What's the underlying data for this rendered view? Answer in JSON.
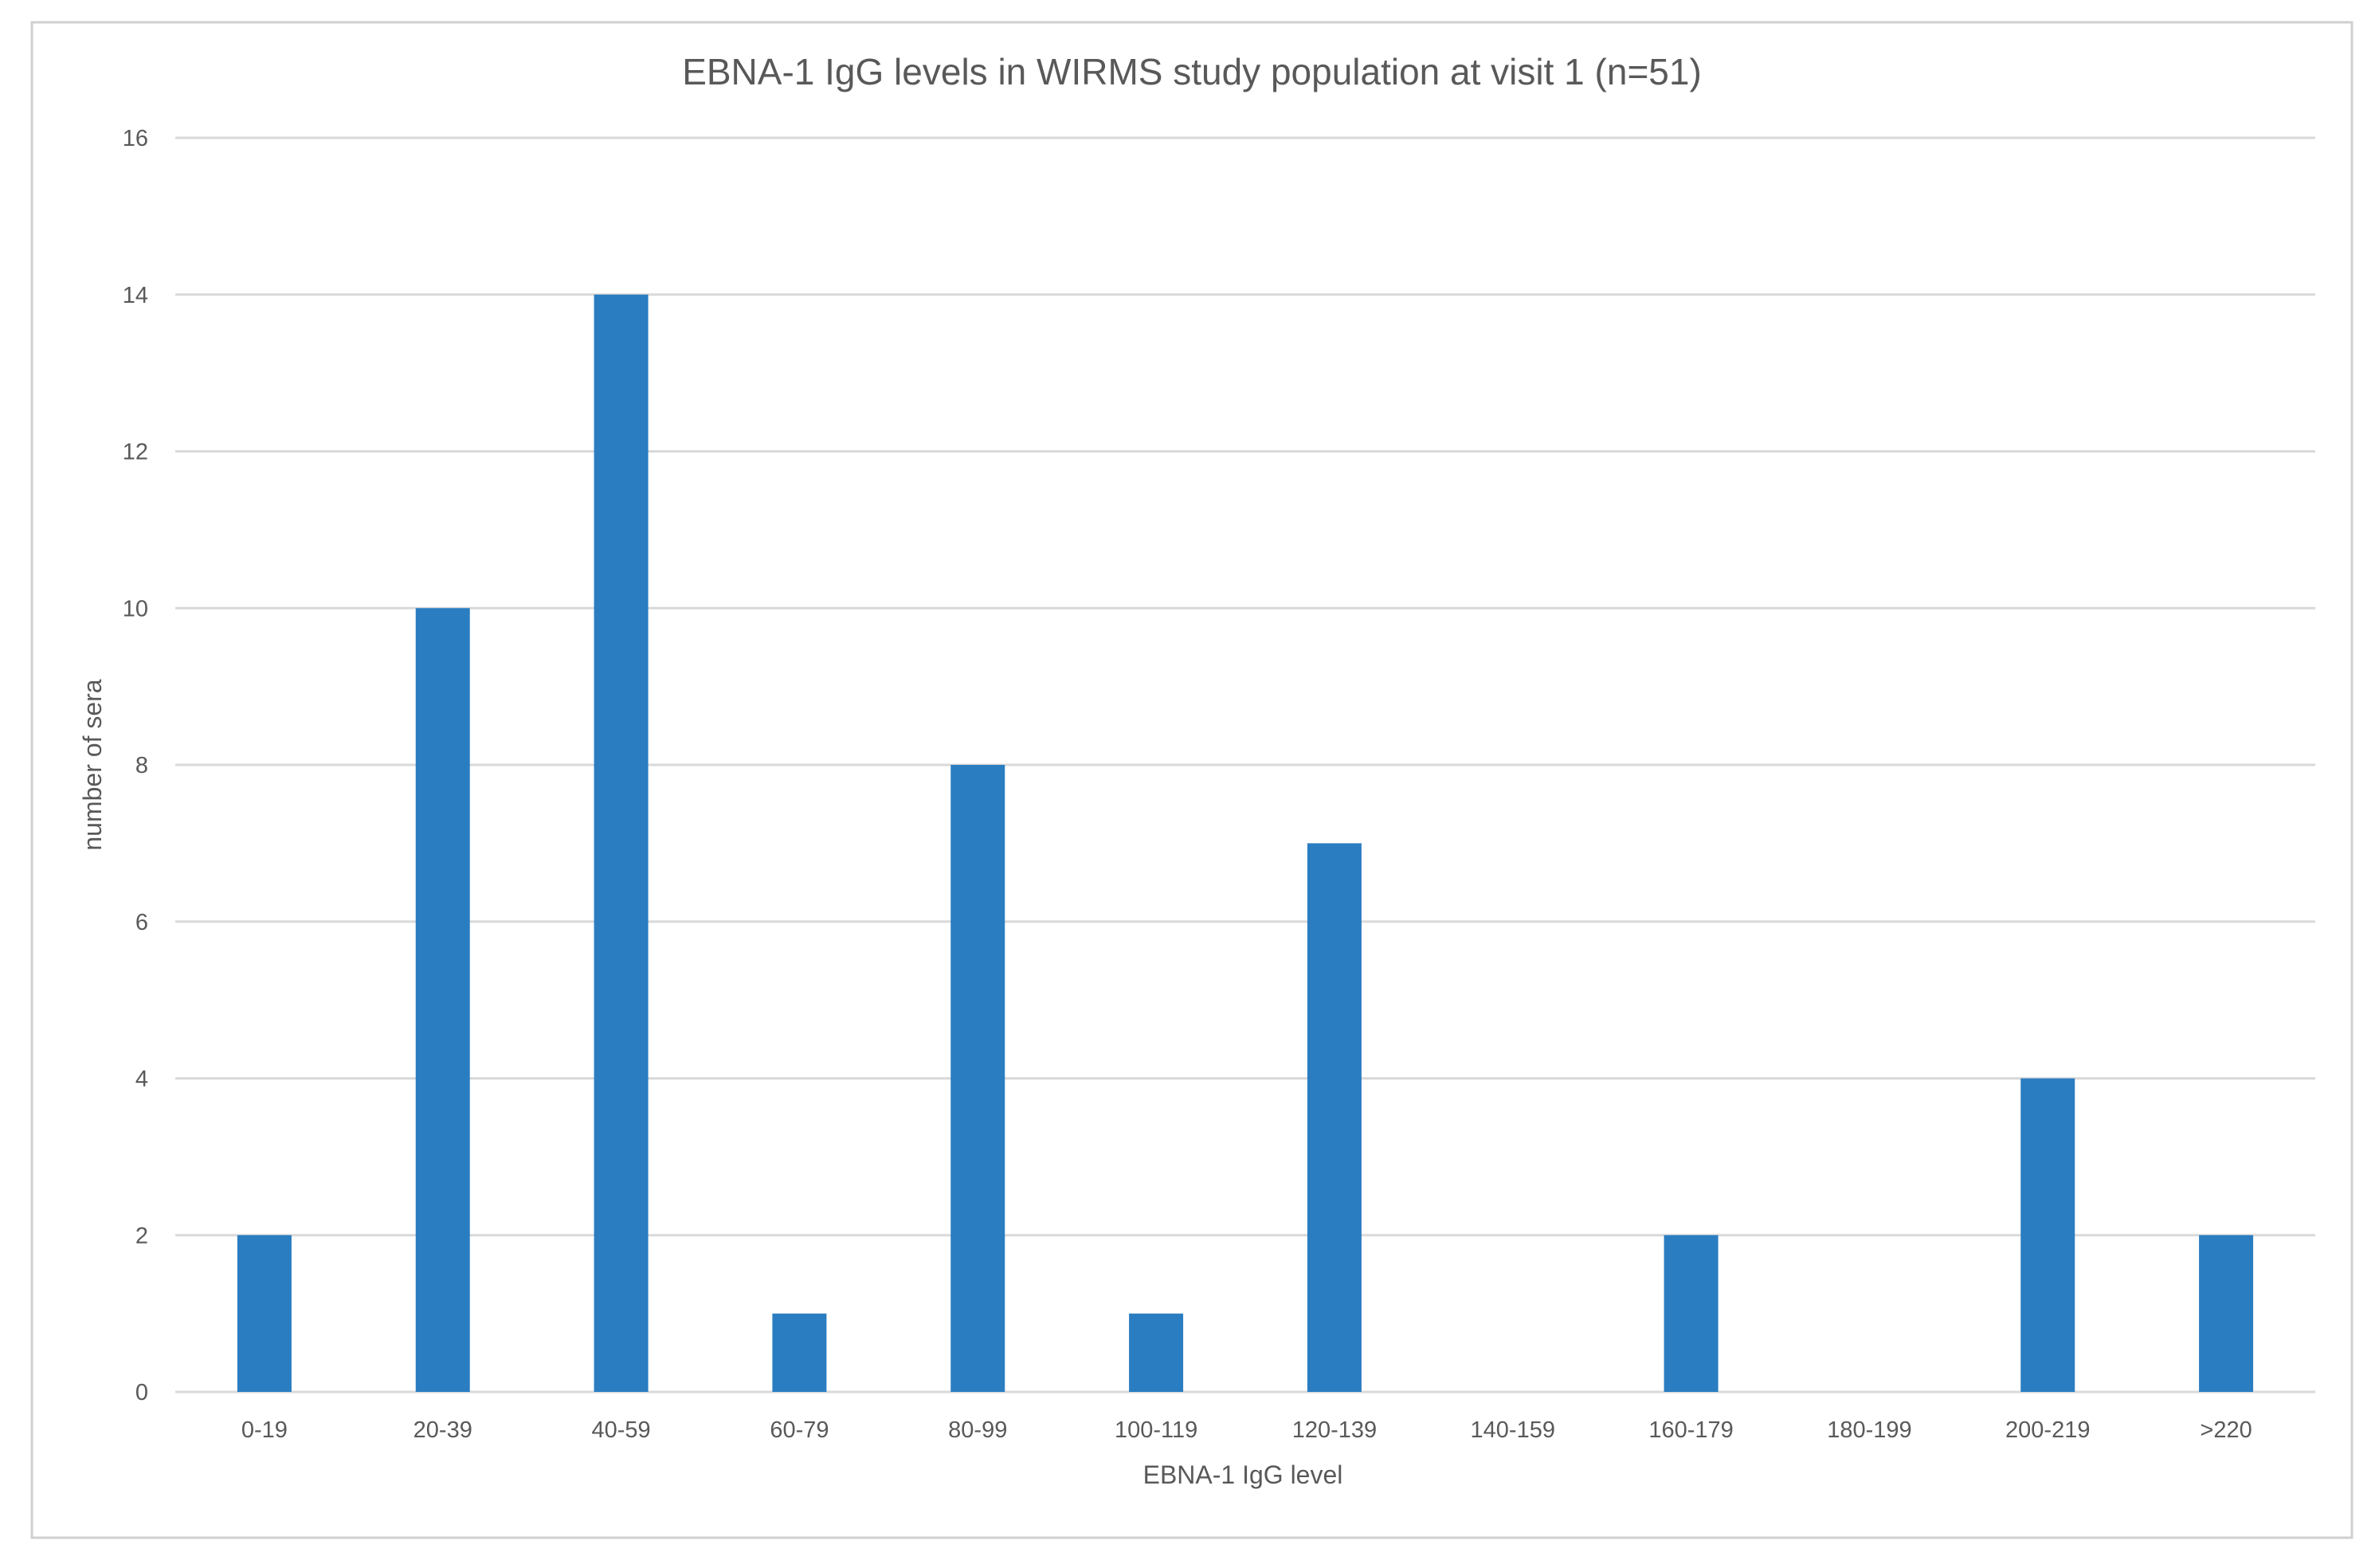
{
  "chart_data": {
    "type": "bar",
    "title": "EBNA-1 IgG levels in WIRMS study population at visit 1 (n=51)",
    "xlabel": "EBNA-1 IgG level",
    "ylabel": "number of sera",
    "categories": [
      "0-19",
      "20-39",
      "40-59",
      "60-79",
      "80-99",
      "100-119",
      "120-139",
      "140-159",
      "160-179",
      "180-199",
      "200-219",
      ">220"
    ],
    "series": [
      {
        "name": "number of sera",
        "values": [
          2,
          10,
          14,
          1,
          8,
          1,
          7,
          0,
          2,
          0,
          4,
          2
        ]
      }
    ],
    "ylim": [
      0,
      16
    ],
    "yticks": [
      0,
      2,
      4,
      6,
      8,
      10,
      12,
      14,
      16
    ],
    "grid": true,
    "legend": "none"
  },
  "colors": {
    "bar": "#2a7dc1",
    "grid": "#d9d9d9",
    "text": "#595959",
    "frame": "#d0d0d0"
  }
}
